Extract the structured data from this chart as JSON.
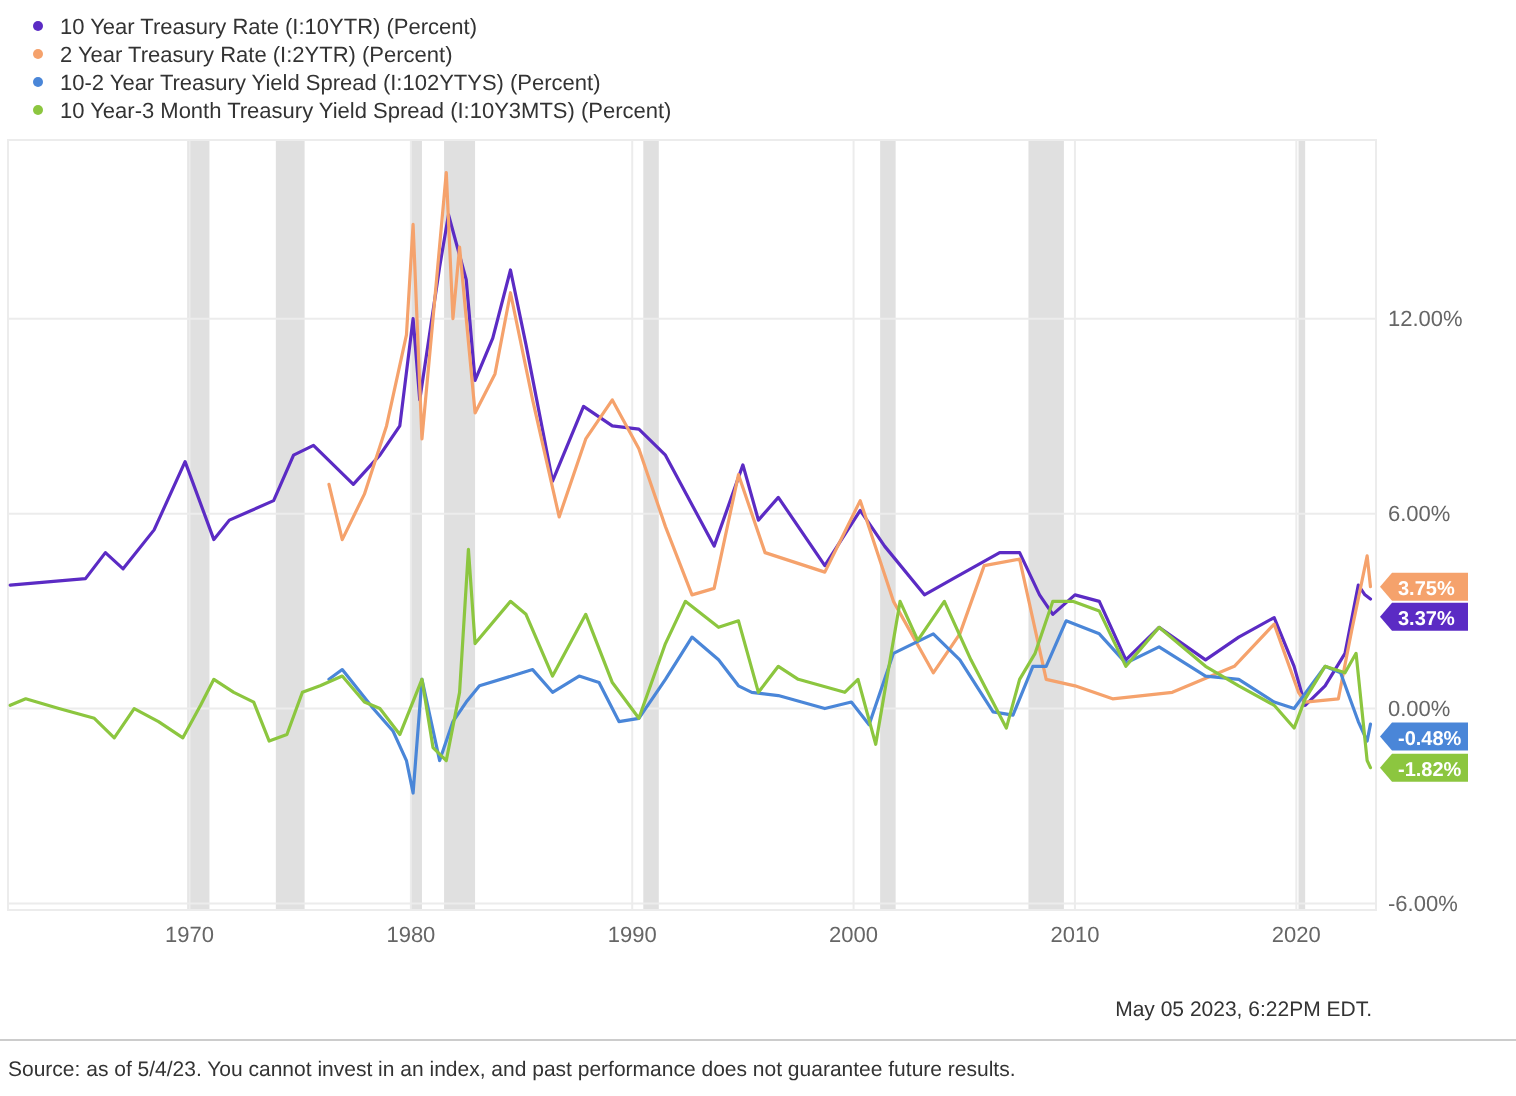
{
  "chart_data": {
    "type": "line",
    "xlim": [
      1961.8,
      2023.6
    ],
    "xticks": [
      1970,
      1980,
      1990,
      2000,
      2010,
      2020
    ],
    "ylim": [
      -6.2,
      17.5
    ],
    "yticks": [
      {
        "value": -6,
        "label": "-6.00%"
      },
      {
        "value": 0,
        "label": "0.00%"
      },
      {
        "value": 6,
        "label": "6.00%"
      },
      {
        "value": 12,
        "label": "12.00%"
      }
    ],
    "grid": true,
    "legend": "top left",
    "marker": "none",
    "line_style": "solid",
    "bands": [
      {
        "axis": "x",
        "from": 1969.9,
        "to": 1970.9,
        "color": "#e0e0e0"
      },
      {
        "axis": "x",
        "from": 1973.9,
        "to": 1975.2,
        "color": "#e0e0e0"
      },
      {
        "axis": "x",
        "from": 1980.0,
        "to": 1980.5,
        "color": "#e0e0e0"
      },
      {
        "axis": "x",
        "from": 1981.5,
        "to": 1982.9,
        "color": "#e0e0e0"
      },
      {
        "axis": "x",
        "from": 1990.5,
        "to": 1991.2,
        "color": "#e0e0e0"
      },
      {
        "axis": "x",
        "from": 2001.2,
        "to": 2001.9,
        "color": "#e0e0e0"
      },
      {
        "axis": "x",
        "from": 2007.9,
        "to": 2009.5,
        "color": "#e0e0e0"
      },
      {
        "axis": "x",
        "from": 2020.1,
        "to": 2020.4,
        "color": "#e0e0e0"
      }
    ],
    "series": [
      {
        "name": "10 Year Treasury Rate (I:10YTR) (Percent)",
        "color": "#5b2bc4",
        "x": [
          1961.9,
          1965.3,
          1966.2,
          1967.0,
          1968.4,
          1969.8,
          1971.1,
          1971.8,
          1973.8,
          1974.7,
          1975.6,
          1977.4,
          1978.6,
          1979.5,
          1980.1,
          1980.4,
          1981.3,
          1981.7,
          1982.5,
          1982.9,
          1983.7,
          1984.5,
          1985.2,
          1986.4,
          1987.8,
          1989.1,
          1990.3,
          1991.5,
          1993.7,
          1995.0,
          1995.7,
          1996.6,
          1998.7,
          2000.3,
          2001.4,
          2003.2,
          2004.5,
          2006.6,
          2007.5,
          2008.4,
          2009.0,
          2010.0,
          2011.1,
          2012.3,
          2013.8,
          2015.9,
          2017.4,
          2019.0,
          2019.9,
          2020.4,
          2021.3,
          2022.2,
          2022.8,
          2023.1,
          2023.35
        ],
        "values": [
          3.8,
          4.0,
          4.8,
          4.3,
          5.5,
          7.6,
          5.2,
          5.8,
          6.4,
          7.8,
          8.1,
          6.9,
          7.8,
          8.7,
          12,
          9.5,
          13.6,
          15.2,
          13.2,
          10.1,
          11.4,
          13.5,
          11.2,
          7.0,
          9.3,
          8.7,
          8.6,
          7.8,
          5.0,
          7.5,
          5.8,
          6.5,
          4.4,
          6.1,
          5.0,
          3.5,
          4.0,
          4.8,
          4.8,
          3.5,
          2.9,
          3.5,
          3.3,
          1.5,
          2.5,
          1.5,
          2.2,
          2.8,
          1.3,
          0.1,
          0.7,
          1.7,
          3.8,
          3.5,
          3.37
        ],
        "value_labels": [
          null,
          null,
          null,
          null,
          null,
          null,
          null,
          null,
          null,
          null,
          null,
          null,
          null,
          null,
          null,
          null,
          null,
          null,
          null,
          null,
          null,
          null,
          null,
          null,
          null,
          null,
          null,
          null,
          null,
          null,
          null,
          null,
          null,
          null,
          null,
          null,
          null,
          null,
          null,
          null,
          null,
          null,
          null,
          null,
          null,
          null,
          null,
          null,
          null,
          null,
          null,
          null,
          null,
          null,
          "3.37%"
        ]
      },
      {
        "name": "2 Year Treasury Rate (I:2YTR) (Percent)",
        "color": "#f5a26c",
        "x": [
          1976.3,
          1976.9,
          1977.9,
          1978.9,
          1979.8,
          1980.1,
          1980.5,
          1981.0,
          1981.6,
          1981.9,
          1982.2,
          1982.9,
          1983.8,
          1984.5,
          1985.5,
          1986.7,
          1987.9,
          1989.1,
          1990.3,
          1991.5,
          1992.7,
          1993.7,
          1994.8,
          1996.0,
          1998.7,
          2000.3,
          2001.8,
          2003.6,
          2004.8,
          2005.9,
          2007.5,
          2008.7,
          2010.0,
          2011.7,
          2014.4,
          2017.2,
          2019.0,
          2020.1,
          2020.4,
          2021.9,
          2022.5,
          2023.2,
          2023.35
        ],
        "values": [
          6.9,
          5.2,
          6.6,
          8.7,
          11.5,
          14.9,
          8.3,
          12,
          16.5,
          12,
          14.2,
          9.1,
          10.3,
          12.8,
          9.5,
          5.9,
          8.3,
          9.5,
          8.0,
          5.6,
          3.5,
          3.7,
          7.2,
          4.8,
          4.2,
          6.4,
          3.3,
          1.1,
          2.3,
          4.4,
          4.6,
          0.9,
          0.7,
          0.3,
          0.5,
          1.3,
          2.6,
          0.5,
          0.2,
          0.3,
          2.4,
          4.7,
          3.75
        ],
        "value_labels": [
          null,
          null,
          null,
          null,
          null,
          null,
          null,
          null,
          null,
          null,
          null,
          null,
          null,
          null,
          null,
          null,
          null,
          null,
          null,
          null,
          null,
          null,
          null,
          null,
          null,
          null,
          null,
          null,
          null,
          null,
          null,
          null,
          null,
          null,
          null,
          null,
          null,
          null,
          null,
          null,
          null,
          null,
          "3.75%"
        ]
      },
      {
        "name": "10-2 Year Treasury Yield Spread (I:102YTYS) (Percent)",
        "color": "#4a86d8",
        "x": [
          1976.3,
          1976.9,
          1978.3,
          1979.2,
          1979.8,
          1980.1,
          1980.5,
          1981.3,
          1981.9,
          1982.5,
          1983.1,
          1985.5,
          1986.4,
          1987.6,
          1988.5,
          1989.4,
          1990.3,
          1991.5,
          1992.7,
          1993.9,
          1994.8,
          1995.4,
          1996.6,
          1998.7,
          1999.9,
          2000.7,
          2001.8,
          2003.6,
          2004.8,
          2006.3,
          2007.2,
          2008.1,
          2008.7,
          2009.6,
          2011.1,
          2012.3,
          2013.8,
          2015.9,
          2017.4,
          2019.0,
          2019.9,
          2021.3,
          2022.0,
          2022.8,
          2023.2,
          2023.35
        ],
        "values": [
          0.9,
          1.2,
          0.0,
          -0.7,
          -1.6,
          -2.6,
          0.9,
          -1.6,
          -0.4,
          0.2,
          0.7,
          1.2,
          0.5,
          1.0,
          0.8,
          -0.4,
          -0.3,
          0.9,
          2.2,
          1.5,
          0.7,
          0.5,
          0.4,
          0.0,
          0.2,
          -0.5,
          1.7,
          2.3,
          1.5,
          -0.1,
          -0.2,
          1.3,
          1.3,
          2.7,
          2.3,
          1.4,
          1.9,
          1.0,
          0.9,
          0.2,
          0.0,
          1.3,
          1.1,
          -0.4,
          -1.0,
          -0.48
        ],
        "value_labels": [
          null,
          null,
          null,
          null,
          null,
          null,
          null,
          null,
          null,
          null,
          null,
          null,
          null,
          null,
          null,
          null,
          null,
          null,
          null,
          null,
          null,
          null,
          null,
          null,
          null,
          null,
          null,
          null,
          null,
          null,
          null,
          null,
          null,
          null,
          null,
          null,
          null,
          null,
          null,
          null,
          null,
          null,
          null,
          null,
          null,
          "-0.48%"
        ]
      },
      {
        "name": "10 Year-3 Month Treasury Yield Spread (I:10Y3MTS) (Percent)",
        "color": "#8cc63f",
        "x": [
          1961.9,
          1962.6,
          1964.1,
          1965.7,
          1966.6,
          1967.5,
          1968.6,
          1969.7,
          1970.5,
          1971.1,
          1972.0,
          1972.9,
          1973.6,
          1974.4,
          1975.1,
          1975.9,
          1976.9,
          1977.9,
          1978.6,
          1979.5,
          1980.5,
          1981.0,
          1981.6,
          1982.2,
          1982.6,
          1982.9,
          1984.5,
          1985.2,
          1986.4,
          1987.9,
          1989.1,
          1990.3,
          1991.5,
          1992.4,
          1993.9,
          1994.8,
          1995.7,
          1996.6,
          1997.5,
          1999.6,
          2000.2,
          2001.0,
          2002.1,
          2002.9,
          2004.1,
          2005.3,
          2006.9,
          2007.5,
          2008.2,
          2009.0,
          2009.9,
          2011.1,
          2012.3,
          2013.8,
          2015.9,
          2017.4,
          2019.0,
          2019.9,
          2020.4,
          2021.3,
          2022.2,
          2022.7,
          2023.2,
          2023.35
        ],
        "values": [
          0.1,
          0.3,
          0.0,
          -0.3,
          -0.9,
          0.0,
          -0.4,
          -0.9,
          0.1,
          0.9,
          0.5,
          0.2,
          -1.0,
          -0.8,
          0.5,
          0.7,
          1.0,
          0.2,
          0.0,
          -0.8,
          0.9,
          -1.2,
          -1.6,
          0.5,
          4.9,
          2.0,
          3.3,
          2.9,
          1.0,
          2.9,
          0.8,
          -0.3,
          2.0,
          3.3,
          2.5,
          2.7,
          0.5,
          1.3,
          0.9,
          0.5,
          0.9,
          -1.1,
          3.3,
          2.1,
          3.3,
          1.5,
          -0.6,
          0.9,
          1.7,
          3.3,
          3.3,
          3.0,
          1.3,
          2.5,
          1.3,
          0.7,
          0.1,
          -0.6,
          0.3,
          1.3,
          1.1,
          1.7,
          -1.6,
          -1.82
        ],
        "value_labels": [
          null,
          null,
          null,
          null,
          null,
          null,
          null,
          null,
          null,
          null,
          null,
          null,
          null,
          null,
          null,
          null,
          null,
          null,
          null,
          null,
          null,
          null,
          null,
          null,
          null,
          null,
          null,
          null,
          null,
          null,
          null,
          null,
          null,
          null,
          null,
          null,
          null,
          null,
          null,
          null,
          null,
          null,
          null,
          null,
          null,
          null,
          null,
          null,
          null,
          null,
          null,
          null,
          null,
          null,
          null,
          null,
          null,
          null,
          null,
          null,
          null,
          null,
          null,
          "-1.82%"
        ]
      }
    ],
    "annotations": [
      "May 05 2023, 6:22PM EDT.",
      "Source: as of 5/4/23. You cannot invest in an index, and past performance does not guarantee future results."
    ]
  }
}
